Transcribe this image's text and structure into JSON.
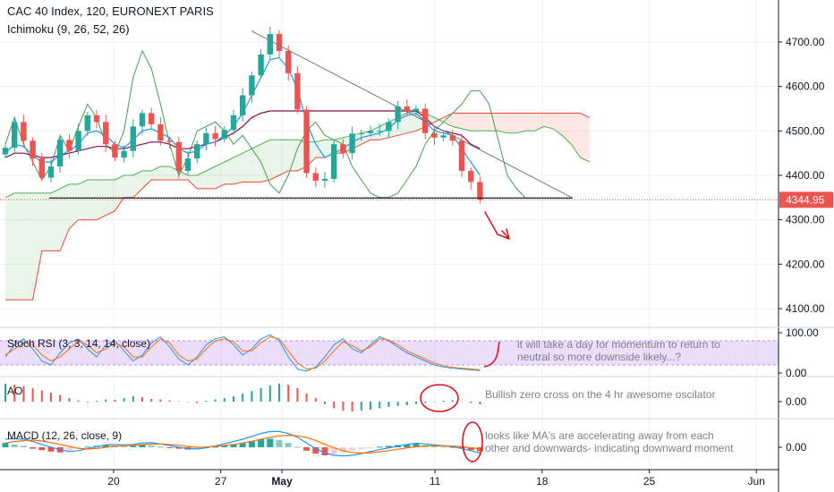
{
  "header": {
    "title": "CAC 40 Index, 120, EURONEXT PARIS",
    "indicator": "Ichimoku (9, 26, 52, 26)"
  },
  "colors": {
    "up": "#26a69a",
    "down": "#ef5350",
    "tenkan": "#2196f3",
    "kijun": "#880e4f",
    "lagging": "#43a047",
    "span_a": "#4caf50",
    "span_b": "#f44336",
    "annotation": "#e0101a",
    "trendline": "#787878"
  },
  "chart_data": [
    {
      "type": "candlestick",
      "title": "CAC 40 Index, 120, EURONEXT PARIS",
      "ylim": [
        4050,
        4780
      ],
      "y_ticks": [
        {
          "value": 4700,
          "label": "4700.00"
        },
        {
          "value": 4600,
          "label": "4600.00"
        },
        {
          "value": 4500,
          "label": "4500.00"
        },
        {
          "value": 4400,
          "label": "4400.00"
        },
        {
          "value": 4300,
          "label": "4300.00"
        },
        {
          "value": 4200,
          "label": "4200.00"
        },
        {
          "value": 4100,
          "label": "4100.00"
        }
      ],
      "x_ticks": [
        {
          "label": "20",
          "date": "2019-04-20"
        },
        {
          "label": "27",
          "date": "2019-04-27"
        },
        {
          "label": "May",
          "date": "2019-05-01"
        },
        {
          "label": "11",
          "date": "2019-05-11"
        },
        {
          "label": "18",
          "date": "2019-05-18"
        },
        {
          "label": "25",
          "date": "2019-05-25"
        },
        {
          "label": "Jun",
          "date": "2019-06-01"
        }
      ],
      "last_price": {
        "value": 4344.95,
        "label": "4344.95"
      },
      "support_level": 4349,
      "trendline": {
        "from": {
          "date": "2019-04-29",
          "value": 4725
        },
        "to": {
          "date": "2019-05-20",
          "value": 4349
        }
      },
      "series": [
        {
          "kind": "close",
          "values": [
            4462,
            4520,
            4478,
            4438,
            4395,
            4420,
            4480,
            4455,
            4500,
            4535,
            4520,
            4470,
            4440,
            4455,
            4510,
            4540,
            4515,
            4478,
            4475,
            4410,
            4438,
            4470,
            4495,
            4482,
            4502,
            4535,
            4580,
            4625,
            4672,
            4718,
            4680,
            4630,
            4548,
            4405,
            4388,
            4392,
            4470,
            4450,
            4494,
            4495,
            4500,
            4500,
            4520,
            4555,
            4545,
            4550,
            4495,
            4485,
            4490,
            4478,
            4410,
            4385,
            4345
          ]
        },
        {
          "kind": "tenkan",
          "values": [
            4450,
            4470,
            4465,
            4445,
            4430,
            4430,
            4445,
            4455,
            4470,
            4495,
            4500,
            4490,
            4470,
            4462,
            4480,
            4500,
            4505,
            4495,
            4485,
            4460,
            4450,
            4455,
            4470,
            4475,
            4490,
            4510,
            4540,
            4580,
            4620,
            4660,
            4665,
            4640,
            4595,
            4520,
            4470,
            4440,
            4450,
            4460,
            4475,
            4485,
            4490,
            4495,
            4505,
            4525,
            4535,
            4540,
            4520,
            4500,
            4495,
            4490,
            4460,
            4430,
            4400
          ]
        },
        {
          "kind": "kijun",
          "values": [
            4440,
            4450,
            4450,
            4445,
            4440,
            4440,
            4445,
            4450,
            4455,
            4460,
            4465,
            4465,
            4460,
            4460,
            4465,
            4470,
            4475,
            4475,
            4470,
            4460,
            4460,
            4465,
            4470,
            4475,
            4485,
            4495,
            4510,
            4530,
            4540,
            4545,
            4545,
            4545,
            4545,
            4545,
            4545,
            4545,
            4545,
            4545,
            4545,
            4545,
            4545,
            4545,
            4545,
            4545,
            4545,
            4545,
            4530,
            4510,
            4500,
            4495,
            4490,
            4470,
            4460
          ]
        },
        {
          "kind": "lagging",
          "values": [
            4470,
            4530,
            4470,
            4430,
            4390,
            4420,
            4490,
            4455,
            4510,
            4560,
            4530,
            4470,
            4450,
            4500,
            4620,
            4680,
            4640,
            4560,
            4470,
            4400,
            4440,
            4500,
            4510,
            4520,
            4500,
            4470,
            4490,
            4460,
            4430,
            4380,
            4360,
            4400,
            4460,
            4500,
            4520,
            4490,
            4480,
            4470,
            4420,
            4390,
            4360,
            4350,
            4350,
            4360,
            4390,
            4420,
            4470,
            4500,
            4520,
            4540,
            4560,
            4590,
            4590,
            4560,
            4480,
            4400,
            4370,
            4349
          ]
        },
        {
          "kind": "span_a",
          "values": [
            4350,
            4360,
            4360,
            4360,
            4360,
            4360,
            4370,
            4380,
            4380,
            4390,
            4390,
            4390,
            4390,
            4400,
            4400,
            4410,
            4410,
            4420,
            4420,
            4410,
            4400,
            4400,
            4410,
            4420,
            4430,
            4440,
            4450,
            4460,
            4470,
            4480,
            4480,
            4480,
            4480,
            4475,
            4475,
            4480,
            4480,
            4485,
            4490,
            4495,
            4500,
            4510,
            4520,
            4530,
            4540,
            4545,
            4540,
            4530,
            4520,
            4510,
            4505,
            4500,
            4500,
            4500,
            4500,
            4495,
            4495,
            4500,
            4500,
            4510,
            4505,
            4490,
            4470,
            4440,
            4430
          ]
        },
        {
          "kind": "span_b",
          "values": [
            4120,
            4120,
            4120,
            4120,
            4230,
            4230,
            4230,
            4280,
            4300,
            4300,
            4300,
            4310,
            4320,
            4350,
            4350,
            4370,
            4390,
            4390,
            4390,
            4390,
            4390,
            4370,
            4370,
            4370,
            4380,
            4380,
            4385,
            4385,
            4385,
            4390,
            4400,
            4410,
            4410,
            4420,
            4440,
            4440,
            4450,
            4450,
            4460,
            4470,
            4480,
            4480,
            4485,
            4490,
            4495,
            4500,
            4510,
            4520,
            4530,
            4540,
            4540,
            4540,
            4540,
            4540,
            4540,
            4540,
            4540,
            4540,
            4540,
            4540,
            4540,
            4540,
            4540,
            4540,
            4530
          ]
        }
      ]
    },
    {
      "type": "line",
      "title": "Stoch RSI (3, 3, 14, 14, close)",
      "ylim": [
        0,
        100
      ],
      "bands": [
        20,
        80
      ],
      "y_ticks": [
        {
          "value": 100,
          "label": "100.00"
        },
        {
          "value": 0,
          "label": "0.00"
        }
      ],
      "series": [
        {
          "kind": "k",
          "values": [
            40,
            70,
            85,
            60,
            30,
            20,
            50,
            75,
            85,
            60,
            40,
            70,
            80,
            55,
            30,
            45,
            75,
            90,
            65,
            35,
            20,
            40,
            70,
            85,
            90,
            70,
            45,
            60,
            85,
            95,
            80,
            40,
            10,
            5,
            15,
            40,
            70,
            85,
            60,
            50,
            70,
            90,
            80,
            65,
            50,
            40,
            30,
            20,
            15,
            12,
            10,
            8,
            6
          ]
        },
        {
          "kind": "d",
          "values": [
            45,
            60,
            75,
            70,
            45,
            30,
            40,
            60,
            80,
            70,
            50,
            60,
            75,
            65,
            40,
            40,
            65,
            85,
            75,
            45,
            30,
            35,
            60,
            80,
            85,
            78,
            55,
            55,
            75,
            90,
            85,
            55,
            25,
            10,
            12,
            30,
            55,
            78,
            68,
            55,
            65,
            85,
            82,
            70,
            55,
            45,
            35,
            25,
            18,
            14,
            12,
            10,
            8
          ]
        }
      ]
    },
    {
      "type": "bar",
      "title": "AO",
      "y_ticks": [
        {
          "value": 0,
          "label": "0.00"
        }
      ],
      "values": [
        40,
        38,
        35,
        30,
        25,
        20,
        15,
        8,
        3,
        -2,
        2,
        5,
        4,
        8,
        12,
        10,
        6,
        5,
        3,
        1,
        -1,
        -3,
        2,
        5,
        8,
        12,
        18,
        24,
        30,
        36,
        40,
        38,
        30,
        18,
        8,
        -5,
        -15,
        -20,
        -22,
        -20,
        -18,
        -15,
        -12,
        -10,
        -8,
        -5,
        -3,
        -1,
        2,
        3,
        1,
        -3,
        -6
      ]
    },
    {
      "type": "bar",
      "title": "MACD (12, 26, close, 9)",
      "y_ticks": [
        {
          "value": 0,
          "label": "0.00"
        }
      ],
      "values": [
        15,
        10,
        5,
        -5,
        -10,
        -15,
        -18,
        -12,
        -5,
        2,
        5,
        8,
        6,
        3,
        5,
        8,
        6,
        2,
        -2,
        -5,
        -8,
        -6,
        -3,
        2,
        6,
        10,
        15,
        22,
        28,
        30,
        25,
        15,
        2,
        -12,
        -22,
        -28,
        -25,
        -18,
        -12,
        -6,
        -2,
        2,
        5,
        8,
        10,
        12,
        8,
        4,
        2,
        0,
        -4,
        -10,
        -14
      ],
      "series": [
        {
          "kind": "macd",
          "values": [
            28,
            30,
            28,
            20,
            10,
            0,
            -8,
            -15,
            -12,
            -5,
            2,
            8,
            10,
            8,
            10,
            15,
            16,
            12,
            6,
            0,
            -5,
            -6,
            -2,
            5,
            12,
            20,
            28,
            38,
            48,
            55,
            55,
            48,
            35,
            15,
            -5,
            -20,
            -28,
            -30,
            -28,
            -22,
            -15,
            -8,
            -2,
            4,
            10,
            14,
            12,
            8,
            5,
            2,
            -4,
            -12,
            -20
          ]
        },
        {
          "kind": "signal",
          "values": [
            15,
            20,
            23,
            25,
            22,
            16,
            10,
            3,
            -4,
            -6,
            -4,
            0,
            4,
            6,
            7,
            9,
            11,
            12,
            10,
            7,
            3,
            0,
            1,
            3,
            6,
            10,
            15,
            21,
            28,
            35,
            40,
            42,
            40,
            34,
            24,
            10,
            -2,
            -12,
            -18,
            -20,
            -19,
            -16,
            -12,
            -7,
            -2,
            2,
            4,
            5,
            5,
            4,
            2,
            -2,
            -6
          ]
        }
      ]
    }
  ],
  "notes": {
    "stoch_line1": "it will take a day for momentum to return to",
    "stoch_line2": "neutral so more downside likely...?",
    "ao": "Bullish zero cross on the 4 hr awesome oscilator",
    "macd_line1": "looks like MA's are accelerating away from each",
    "macd_line2": "other and downwards- indicating downward moment"
  }
}
